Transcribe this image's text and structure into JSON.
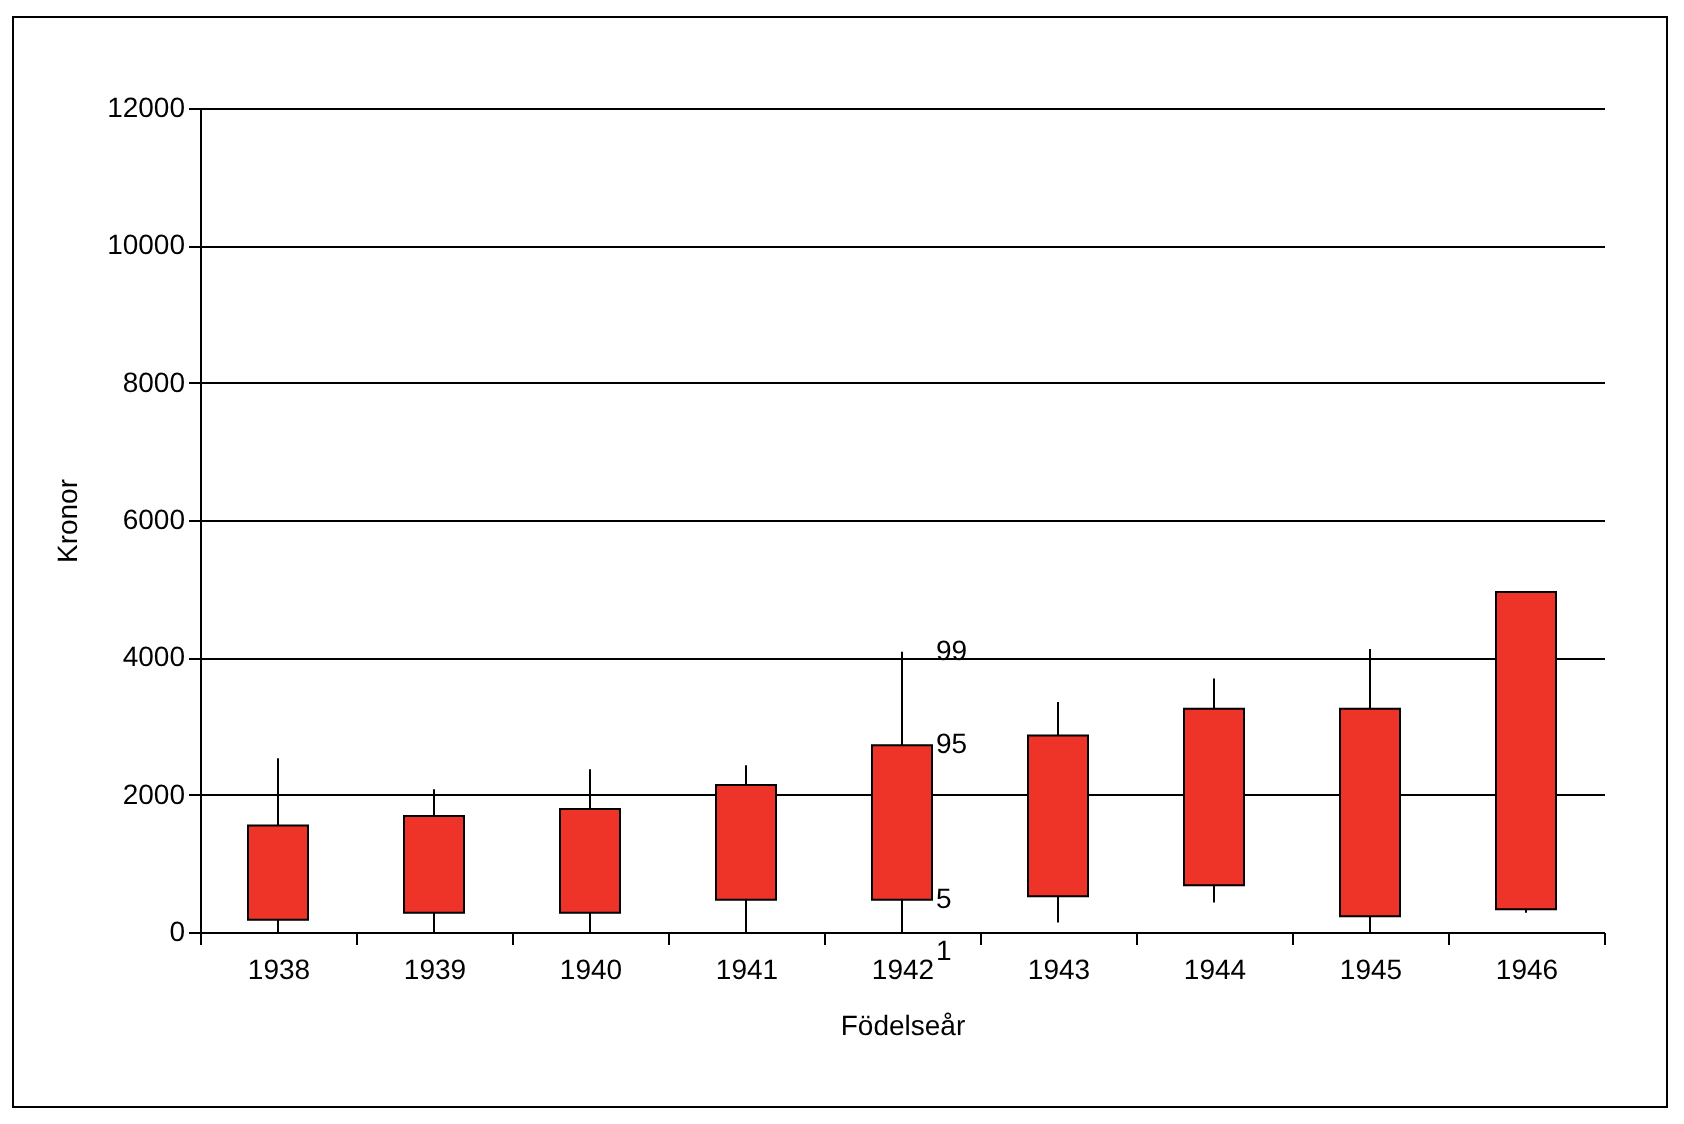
{
  "chart_data": {
    "type": "candlestick",
    "xlabel": "Födelseår",
    "ylabel": "Kronor",
    "categories": [
      "1938",
      "1939",
      "1940",
      "1941",
      "1942",
      "1943",
      "1944",
      "1945",
      "1946"
    ],
    "ohlc": [
      [
        180,
        2530,
        0,
        1550
      ],
      [
        280,
        2080,
        0,
        1690
      ],
      [
        280,
        2370,
        0,
        1790
      ],
      [
        470,
        2430,
        0,
        2140
      ],
      [
        470,
        4080,
        0,
        2720
      ],
      [
        520,
        3350,
        140,
        2860
      ],
      [
        680,
        3690,
        430,
        3250
      ],
      [
        230,
        4120,
        0,
        3250
      ],
      [
        330,
        4950,
        280,
        4950
      ]
    ],
    "color": "#ee3329",
    "ylim": [
      0,
      12000
    ],
    "yticks": [
      0,
      2000,
      4000,
      6000,
      8000,
      10000,
      12000
    ],
    "grid": "y",
    "annotations": [
      {
        "text": "99",
        "x": "1942",
        "y": 4080
      },
      {
        "text": "95",
        "x": "1942",
        "y": 2720
      },
      {
        "text": "5",
        "x": "1942",
        "y": 470
      },
      {
        "text": "1",
        "x": "1942",
        "y": 0
      }
    ]
  }
}
